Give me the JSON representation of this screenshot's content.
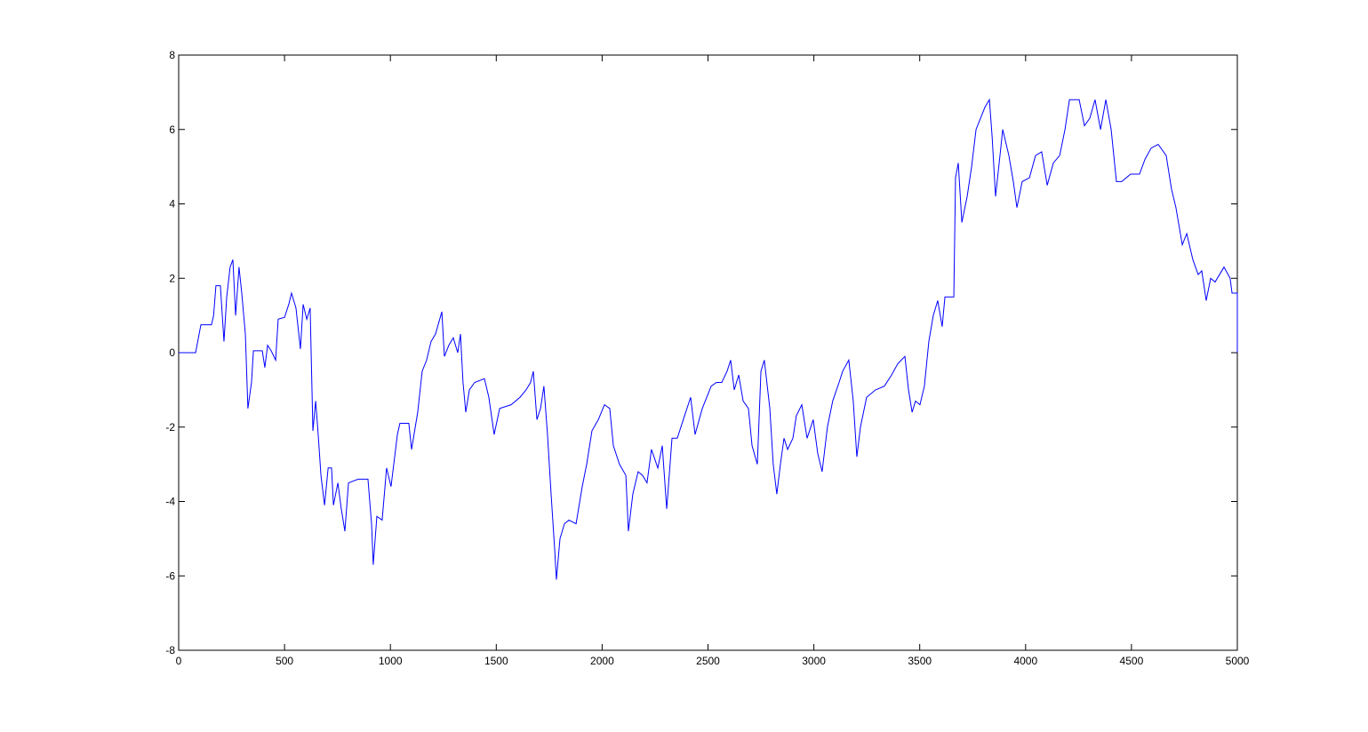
{
  "chart_data": {
    "type": "line",
    "color": "#0000ff",
    "xlim": [
      0,
      5000
    ],
    "xticks": [
      0,
      500,
      1000,
      1500,
      2000,
      2500,
      3000,
      3500,
      4000,
      4500,
      5000
    ],
    "ylim": [
      -8,
      8
    ],
    "yticks": [
      -8,
      -6,
      -4,
      -2,
      0,
      2,
      4,
      6,
      8
    ],
    "grid": false,
    "x": [
      0,
      80,
      105,
      155,
      165,
      176,
      197,
      214,
      227,
      243,
      256,
      269,
      285,
      298,
      315,
      327,
      344,
      353,
      395,
      407,
      420,
      437,
      458,
      470,
      500,
      520,
      533,
      554,
      575,
      588,
      605,
      621,
      634,
      647,
      659,
      672,
      689,
      706,
      722,
      731,
      752,
      768,
      785,
      802,
      848,
      894,
      911,
      919,
      936,
      961,
      982,
      1003,
      1033,
      1045,
      1087,
      1100,
      1129,
      1150,
      1171,
      1192,
      1213,
      1243,
      1255,
      1276,
      1297,
      1318,
      1331,
      1343,
      1356,
      1373,
      1398,
      1444,
      1465,
      1490,
      1516,
      1570,
      1612,
      1641,
      1662,
      1675,
      1692,
      1709,
      1725,
      1742,
      1759,
      1776,
      1784,
      1801,
      1822,
      1843,
      1877,
      1906,
      1927,
      1952,
      1982,
      2011,
      2036,
      2053,
      2082,
      2112,
      2124,
      2145,
      2170,
      2191,
      2212,
      2233,
      2263,
      2284,
      2305,
      2330,
      2355,
      2389,
      2418,
      2439,
      2473,
      2515,
      2540,
      2565,
      2590,
      2607,
      2624,
      2645,
      2666,
      2691,
      2708,
      2733,
      2750,
      2766,
      2792,
      2808,
      2825,
      2842,
      2859,
      2876,
      2901,
      2917,
      2943,
      2968,
      2997,
      3018,
      3039,
      3064,
      3089,
      3119,
      3136,
      3165,
      3186,
      3203,
      3220,
      3249,
      3291,
      3333,
      3367,
      3396,
      3430,
      3447,
      3464,
      3480,
      3501,
      3522,
      3543,
      3564,
      3585,
      3606,
      3619,
      3661,
      3669,
      3682,
      3699,
      3724,
      3745,
      3766,
      3787,
      3808,
      3829,
      3842,
      3858,
      3879,
      3892,
      3921,
      3942,
      3959,
      3984,
      4018,
      4047,
      4076,
      4102,
      4131,
      4161,
      4186,
      4207,
      4253,
      4278,
      4303,
      4328,
      4354,
      4379,
      4404,
      4429,
      4454,
      4496,
      4538,
      4564,
      4593,
      4626,
      4664,
      4689,
      4710,
      4740,
      4761,
      4790,
      4815,
      4832,
      4853,
      4874,
      4895,
      4916,
      4937,
      4966,
      4975,
      5000,
      5000
    ],
    "values": [
      0,
      0,
      0.75,
      0.75,
      1.0,
      1.8,
      1.8,
      0.3,
      1.5,
      2.3,
      2.5,
      1.0,
      2.3,
      1.6,
      0.5,
      -1.5,
      -0.8,
      0.05,
      0.05,
      -0.4,
      0.2,
      0.05,
      -0.2,
      0.9,
      0.95,
      1.3,
      1.6,
      1.2,
      0.1,
      1.3,
      0.9,
      1.2,
      -2.1,
      -1.3,
      -2.2,
      -3.3,
      -4.1,
      -3.1,
      -3.1,
      -4.1,
      -3.5,
      -4.2,
      -4.8,
      -3.5,
      -3.4,
      -3.4,
      -4.6,
      -5.7,
      -4.4,
      -4.5,
      -3.1,
      -3.6,
      -2.2,
      -1.9,
      -1.9,
      -2.6,
      -1.6,
      -0.5,
      -0.2,
      0.3,
      0.5,
      1.1,
      -0.1,
      0.2,
      0.4,
      0.0,
      0.5,
      -0.8,
      -1.6,
      -1.0,
      -0.8,
      -0.7,
      -1.2,
      -2.2,
      -1.5,
      -1.4,
      -1.2,
      -1.0,
      -0.8,
      -0.5,
      -1.8,
      -1.5,
      -0.9,
      -2.2,
      -3.8,
      -5.3,
      -6.1,
      -5.0,
      -4.6,
      -4.5,
      -4.6,
      -3.6,
      -3.0,
      -2.1,
      -1.8,
      -1.4,
      -1.5,
      -2.5,
      -3.0,
      -3.3,
      -4.8,
      -3.8,
      -3.2,
      -3.3,
      -3.5,
      -2.6,
      -3.1,
      -2.5,
      -4.2,
      -2.3,
      -2.3,
      -1.7,
      -1.2,
      -2.2,
      -1.5,
      -0.9,
      -0.8,
      -0.8,
      -0.5,
      -0.2,
      -1.0,
      -0.6,
      -1.3,
      -1.5,
      -2.5,
      -3.0,
      -0.5,
      -0.2,
      -1.5,
      -3.0,
      -3.8,
      -3.0,
      -2.3,
      -2.6,
      -2.3,
      -1.7,
      -1.4,
      -2.3,
      -1.8,
      -2.7,
      -3.2,
      -2.0,
      -1.3,
      -0.8,
      -0.5,
      -0.2,
      -1.3,
      -2.8,
      -2.0,
      -1.2,
      -1.0,
      -0.9,
      -0.6,
      -0.3,
      -0.1,
      -1.0,
      -1.6,
      -1.3,
      -1.4,
      -0.9,
      0.3,
      1.0,
      1.4,
      0.7,
      1.5,
      1.5,
      4.7,
      5.1,
      3.5,
      4.2,
      5.0,
      6.0,
      6.3,
      6.6,
      6.8,
      5.8,
      4.2,
      5.3,
      6.0,
      5.3,
      4.6,
      3.9,
      4.6,
      4.7,
      5.3,
      5.4,
      4.5,
      5.1,
      5.3,
      6.0,
      6.8,
      6.8,
      6.1,
      6.3,
      6.8,
      6.0,
      6.8,
      6.0,
      4.6,
      4.6,
      4.8,
      4.8,
      5.2,
      5.5,
      5.6,
      5.3,
      4.4,
      3.9,
      2.9,
      3.2,
      2.5,
      2.1,
      2.2,
      1.4,
      2.0,
      1.9,
      2.1,
      2.3,
      2.0,
      1.6,
      1.6,
      0
    ]
  }
}
